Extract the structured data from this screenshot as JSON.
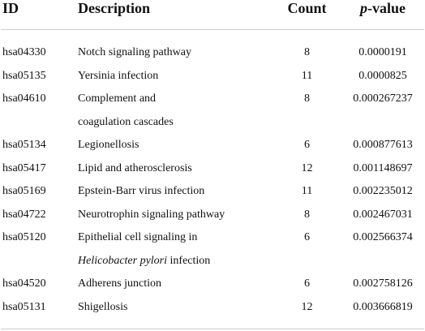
{
  "table": {
    "header": [
      "ID",
      "Description",
      "Count",
      "p-value"
    ],
    "rows": [
      [
        "hsa04330",
        "Notch signaling pathway",
        "8",
        "0.0000191"
      ],
      [
        "hsa05135",
        "Yersinia infection",
        "11",
        "0.0000825"
      ],
      [
        "hsa04610",
        [
          "Complement and",
          "coagulation cascades"
        ],
        "8",
        "0.000267237"
      ],
      [
        "hsa05134",
        "Legionellosis",
        "6",
        "0.000877613"
      ],
      [
        "hsa05417",
        "Lipid and atherosclerosis",
        "12",
        "0.001148697"
      ],
      [
        "hsa05169",
        "Epstein-Barr virus infection",
        "11",
        "0.002235012"
      ],
      [
        "hsa04722",
        "Neurotrophin signaling pathway",
        "8",
        "0.002467031"
      ],
      [
        "hsa05120",
        [
          "Epithelial cell signaling in",
          "Helicobacter pylori",
          "infection"
        ],
        "6",
        "0.002566374"
      ],
      [
        "hsa04520",
        "Adherens junction",
        "6",
        "0.002758126"
      ],
      [
        "hsa05131",
        "Shigellosis",
        "12",
        "0.003666819"
      ]
    ]
  }
}
